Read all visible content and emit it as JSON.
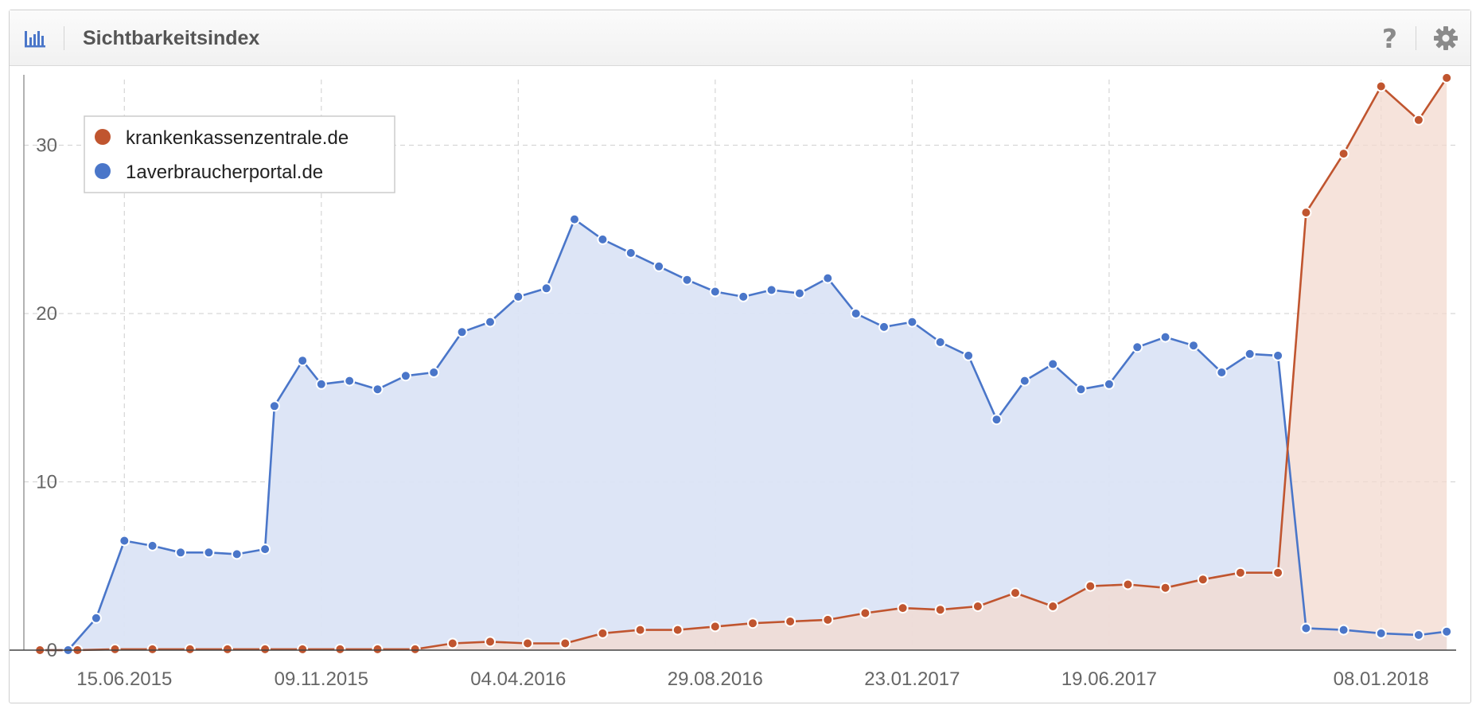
{
  "header": {
    "title": "Sichtbarkeitsindex",
    "icons": {
      "chart": "bar-chart-icon",
      "help": "help-icon",
      "settings": "gear-icon"
    },
    "help_glyph": "?"
  },
  "colors": {
    "series_a": "#c0552f",
    "series_b": "#4a76c9",
    "fill_a": "#f3d9cf",
    "fill_b": "#dbe4f5"
  },
  "chart_data": {
    "type": "area",
    "ylim": [
      0,
      34
    ],
    "yticks": [
      0,
      10,
      20,
      30
    ],
    "grid": true,
    "legend_position": "top-left",
    "xticks": [
      {
        "label": "15.06.2015",
        "date": "2015-06-15"
      },
      {
        "label": "09.11.2015",
        "date": "2015-11-09"
      },
      {
        "label": "04.04.2016",
        "date": "2016-04-04"
      },
      {
        "label": "29.08.2016",
        "date": "2016-08-29"
      },
      {
        "label": "23.01.2017",
        "date": "2017-01-23"
      },
      {
        "label": "19.06.2017",
        "date": "2017-06-19"
      },
      {
        "label": "08.01.2018",
        "date": "2018-01-08"
      }
    ],
    "series": [
      {
        "name": "krankenkassenzentrale.de",
        "points": [
          [
            "2015-04-13",
            0.0
          ],
          [
            "2015-05-11",
            0.0
          ],
          [
            "2015-06-08",
            0.05
          ],
          [
            "2015-07-06",
            0.05
          ],
          [
            "2015-08-03",
            0.05
          ],
          [
            "2015-08-31",
            0.05
          ],
          [
            "2015-09-28",
            0.05
          ],
          [
            "2015-10-26",
            0.05
          ],
          [
            "2015-11-23",
            0.05
          ],
          [
            "2015-12-21",
            0.05
          ],
          [
            "2016-01-18",
            0.05
          ],
          [
            "2016-02-15",
            0.4
          ],
          [
            "2016-03-14",
            0.5
          ],
          [
            "2016-04-11",
            0.4
          ],
          [
            "2016-05-09",
            0.4
          ],
          [
            "2016-06-06",
            1.0
          ],
          [
            "2016-07-04",
            1.2
          ],
          [
            "2016-08-01",
            1.2
          ],
          [
            "2016-08-29",
            1.4
          ],
          [
            "2016-09-26",
            1.6
          ],
          [
            "2016-10-24",
            1.7
          ],
          [
            "2016-11-21",
            1.8
          ],
          [
            "2016-12-19",
            2.2
          ],
          [
            "2017-01-16",
            2.5
          ],
          [
            "2017-02-13",
            2.4
          ],
          [
            "2017-03-13",
            2.6
          ],
          [
            "2017-04-10",
            3.4
          ],
          [
            "2017-05-08",
            2.6
          ],
          [
            "2017-06-05",
            3.8
          ],
          [
            "2017-07-03",
            3.9
          ],
          [
            "2017-07-31",
            3.7
          ],
          [
            "2017-08-28",
            4.2
          ],
          [
            "2017-09-25",
            4.6
          ],
          [
            "2017-10-23",
            4.6
          ],
          [
            "2017-11-13",
            26.0
          ],
          [
            "2017-12-11",
            29.5
          ],
          [
            "2018-01-08",
            33.5
          ],
          [
            "2018-02-05",
            31.5
          ],
          [
            "2018-02-26",
            34.0
          ]
        ]
      },
      {
        "name": "1averbraucherportal.de",
        "points": [
          [
            "2015-04-13",
            0.0
          ],
          [
            "2015-05-04",
            0.0
          ],
          [
            "2015-05-25",
            1.9
          ],
          [
            "2015-06-15",
            6.5
          ],
          [
            "2015-07-06",
            6.2
          ],
          [
            "2015-07-27",
            5.8
          ],
          [
            "2015-08-17",
            5.8
          ],
          [
            "2015-09-07",
            5.7
          ],
          [
            "2015-09-28",
            6.0
          ],
          [
            "2015-10-05",
            14.5
          ],
          [
            "2015-10-26",
            17.2
          ],
          [
            "2015-11-09",
            15.8
          ],
          [
            "2015-11-30",
            16.0
          ],
          [
            "2015-12-21",
            15.5
          ],
          [
            "2016-01-11",
            16.3
          ],
          [
            "2016-02-01",
            16.5
          ],
          [
            "2016-02-22",
            18.9
          ],
          [
            "2016-03-14",
            19.5
          ],
          [
            "2016-04-04",
            21.0
          ],
          [
            "2016-04-25",
            21.5
          ],
          [
            "2016-05-16",
            25.6
          ],
          [
            "2016-06-06",
            24.4
          ],
          [
            "2016-06-27",
            23.6
          ],
          [
            "2016-07-18",
            22.8
          ],
          [
            "2016-08-08",
            22.0
          ],
          [
            "2016-08-29",
            21.3
          ],
          [
            "2016-09-19",
            21.0
          ],
          [
            "2016-10-10",
            21.4
          ],
          [
            "2016-10-31",
            21.2
          ],
          [
            "2016-11-21",
            22.1
          ],
          [
            "2016-12-12",
            20.0
          ],
          [
            "2017-01-02",
            19.2
          ],
          [
            "2017-01-23",
            19.5
          ],
          [
            "2017-02-13",
            18.3
          ],
          [
            "2017-03-06",
            17.5
          ],
          [
            "2017-03-27",
            13.7
          ],
          [
            "2017-04-17",
            16.0
          ],
          [
            "2017-05-08",
            17.0
          ],
          [
            "2017-05-29",
            15.5
          ],
          [
            "2017-06-19",
            15.8
          ],
          [
            "2017-07-10",
            18.0
          ],
          [
            "2017-07-31",
            18.6
          ],
          [
            "2017-08-21",
            18.1
          ],
          [
            "2017-09-11",
            16.5
          ],
          [
            "2017-10-02",
            17.6
          ],
          [
            "2017-10-23",
            17.5
          ],
          [
            "2017-11-13",
            1.3
          ],
          [
            "2017-12-11",
            1.2
          ],
          [
            "2018-01-08",
            1.0
          ],
          [
            "2018-02-05",
            0.9
          ],
          [
            "2018-02-26",
            1.1
          ]
        ]
      }
    ]
  }
}
